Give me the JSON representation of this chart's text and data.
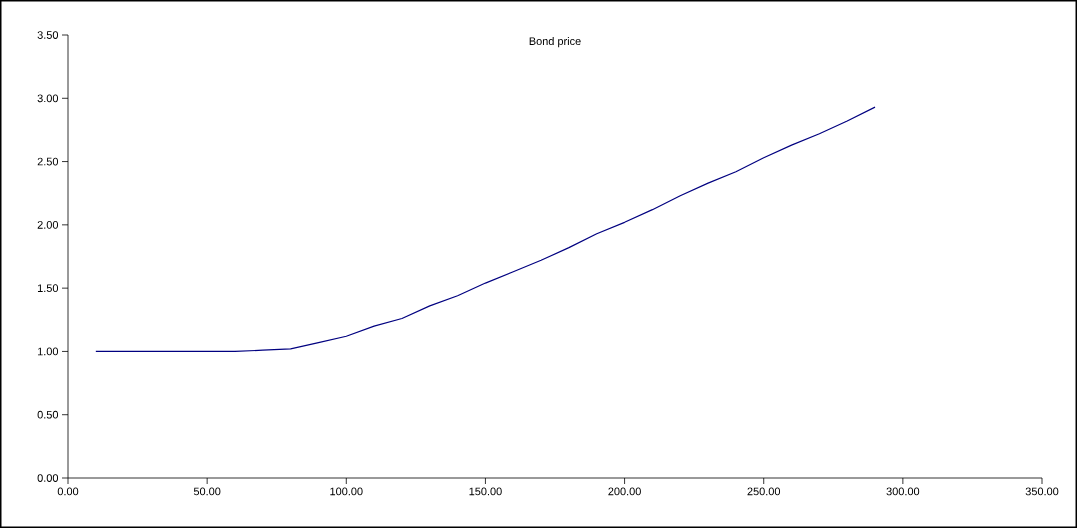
{
  "chart_data": {
    "type": "line",
    "title": "Bond price",
    "x": [
      10,
      20,
      30,
      40,
      50,
      60,
      70,
      80,
      90,
      100,
      110,
      120,
      130,
      140,
      150,
      160,
      170,
      180,
      190,
      200,
      210,
      220,
      230,
      240,
      250,
      260,
      270,
      280,
      290
    ],
    "series": [
      {
        "color": "#000080",
        "values": [
          1.0,
          1.0,
          1.0,
          1.0,
          1.0,
          1.0,
          1.01,
          1.02,
          1.07,
          1.12,
          1.2,
          1.26,
          1.36,
          1.44,
          1.54,
          1.63,
          1.72,
          1.82,
          1.93,
          2.02,
          2.12,
          2.23,
          2.33,
          2.42,
          2.53,
          2.63,
          2.72,
          2.82,
          2.93
        ]
      }
    ],
    "xlim": [
      0,
      350
    ],
    "ylim": [
      0,
      3.5
    ],
    "xticks": [
      {
        "value": 0,
        "label": "0.00"
      },
      {
        "value": 50,
        "label": "50.00"
      },
      {
        "value": 100,
        "label": "100.00"
      },
      {
        "value": 150,
        "label": "150.00"
      },
      {
        "value": 200,
        "label": "200.00"
      },
      {
        "value": 250,
        "label": "250.00"
      },
      {
        "value": 300,
        "label": "300.00"
      },
      {
        "value": 350,
        "label": "350.00"
      }
    ],
    "yticks": [
      {
        "value": 0,
        "label": "0.00"
      },
      {
        "value": 0.5,
        "label": "0.50"
      },
      {
        "value": 1,
        "label": "1.00"
      },
      {
        "value": 1.5,
        "label": "1.50"
      },
      {
        "value": 2,
        "label": "2.00"
      },
      {
        "value": 2.5,
        "label": "2.50"
      },
      {
        "value": 3,
        "label": "3.00"
      },
      {
        "value": 3.5,
        "label": "3.50"
      }
    ],
    "marker": "none",
    "line_style": "solid"
  }
}
